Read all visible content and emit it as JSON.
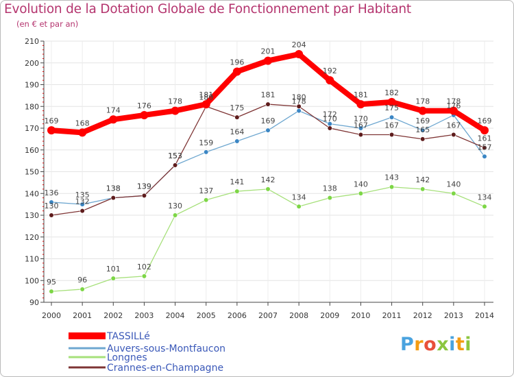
{
  "title": "Evolution de la Dotation Globale de Fonctionnement par Habitant",
  "subtitle": "(en € et par an)",
  "logo": {
    "text": "Proxiti",
    "letters": [
      "P",
      "r",
      "o",
      "x",
      "i",
      "t",
      "i"
    ],
    "letter_colors": [
      "#4aa3df",
      "#f39c12",
      "#e8503a",
      "#8cc63f",
      "#4aa3df",
      "#f39c12",
      "#8cc63f"
    ]
  },
  "chart_data": {
    "type": "line",
    "title": "Evolution de la Dotation Globale de Fonctionnement par Habitant",
    "subtitle": "(en € et par an)",
    "xlabel": "",
    "ylabel": "",
    "x": [
      "2000",
      "2001",
      "2002",
      "2003",
      "2004",
      "2005",
      "2006",
      "2007",
      "2008",
      "2009",
      "2010",
      "2011",
      "2012",
      "2013",
      "2014"
    ],
    "ylim": [
      90,
      210
    ],
    "yticks": [
      90,
      100,
      110,
      120,
      130,
      140,
      150,
      160,
      170,
      180,
      190,
      200,
      210
    ],
    "grid": true,
    "legend_position": "bottom-left",
    "series": [
      {
        "name": "TASSILLé",
        "color": "#ff0000",
        "marker_color": "#ff0000",
        "emphasis": "thick",
        "values": [
          169,
          168,
          174,
          176,
          178,
          181,
          196,
          201,
          204,
          192,
          181,
          182,
          178,
          178,
          169
        ],
        "labels": [
          "169",
          "168",
          "174",
          "176",
          "178",
          "181",
          "196",
          "201",
          "204",
          "192",
          "181",
          "182",
          "178",
          "178",
          "169"
        ]
      },
      {
        "name": "Auvers-sous-Montfaucon",
        "color": "#6ea7d0",
        "marker_color": "#3b86c4",
        "emphasis": "thin",
        "values": [
          136,
          135,
          138,
          139,
          153,
          159,
          164,
          169,
          178,
          172,
          170,
          175,
          169,
          176,
          157
        ],
        "labels": [
          "136",
          "135",
          "138",
          "139",
          "153",
          "159",
          "164",
          "169",
          "178",
          "172",
          "170",
          "175",
          "169",
          "176",
          "157"
        ]
      },
      {
        "name": "Longnes",
        "color": "#a6e07a",
        "marker_color": "#7dd646",
        "emphasis": "thin",
        "values": [
          95,
          96,
          101,
          102,
          130,
          137,
          141,
          142,
          134,
          138,
          140,
          143,
          142,
          140,
          134
        ],
        "labels": [
          "95",
          "96",
          "101",
          "102",
          "130",
          "137",
          "141",
          "142",
          "134",
          "138",
          "140",
          "143",
          "142",
          "140",
          "134"
        ]
      },
      {
        "name": "Crannes-en-Champagne",
        "color": "#7e3434",
        "marker_color": "#5e1c1c",
        "emphasis": "thin",
        "values": [
          130,
          132,
          138,
          139,
          153,
          180,
          175,
          181,
          180,
          170,
          167,
          167,
          165,
          167,
          161
        ],
        "labels": [
          "130",
          "132",
          "138",
          "139",
          "153",
          "180",
          "175",
          "181",
          "180",
          "170",
          "167",
          "167",
          "165",
          "167",
          "161"
        ]
      }
    ]
  }
}
